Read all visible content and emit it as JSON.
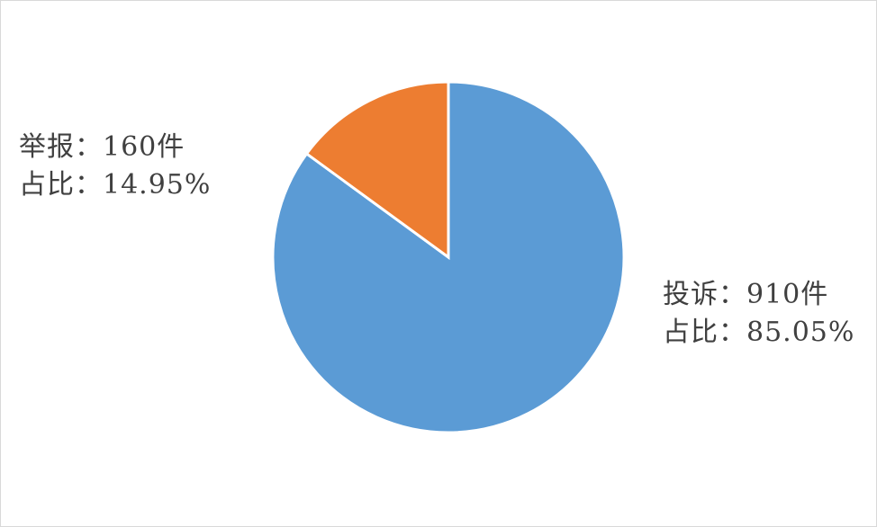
{
  "chart_data": {
    "type": "pie",
    "categories": [
      "投诉",
      "举报"
    ],
    "values": [
      910,
      160
    ],
    "percentages": [
      85.05,
      14.95
    ],
    "colors": [
      "#5B9BD5",
      "#ED7D31"
    ],
    "start_angle": "12 o'clock, clockwise",
    "data_labels": [
      {
        "line1": "投诉：910件",
        "line2": "占比：85.05%"
      },
      {
        "line1": "举报：160件",
        "line2": "占比：14.95%"
      }
    ]
  }
}
